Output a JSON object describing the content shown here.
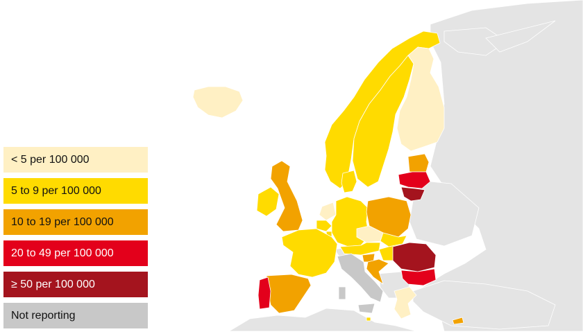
{
  "colors": {
    "sea": "#ffffff",
    "non_eu_land": "#e4e4e4",
    "border": "#ffffff"
  },
  "legend": [
    {
      "label": "< 5 per 100 000",
      "color": "#fff0c4",
      "text_color": "#111111"
    },
    {
      "label": "5 to 9 per 100 000",
      "color": "#ffdb00",
      "text_color": "#111111"
    },
    {
      "label": "10 to 19 per 100 000",
      "color": "#f2a200",
      "text_color": "#111111"
    },
    {
      "label": "20 to 49 per 100 000",
      "color": "#e3001b",
      "text_color": "#ffffff"
    },
    {
      "label": "≥ 50 per 100 000",
      "color": "#a4141e",
      "text_color": "#ffffff"
    },
    {
      "label": "Not reporting",
      "color": "#c8c8c8",
      "text_color": "#111111"
    }
  ],
  "countries": [
    {
      "name": "Iceland",
      "class": 0
    },
    {
      "name": "Norway",
      "class": 1
    },
    {
      "name": "Sweden",
      "class": 1
    },
    {
      "name": "Finland",
      "class": 0
    },
    {
      "name": "Estonia",
      "class": 2
    },
    {
      "name": "Latvia",
      "class": 3
    },
    {
      "name": "Lithuania",
      "class": 4
    },
    {
      "name": "Ireland",
      "class": 1
    },
    {
      "name": "United Kingdom",
      "class": 2
    },
    {
      "name": "Denmark",
      "class": 1
    },
    {
      "name": "Netherlands",
      "class": 0
    },
    {
      "name": "Belgium",
      "class": 1
    },
    {
      "name": "Luxembourg",
      "class": 1
    },
    {
      "name": "Germany",
      "class": 1
    },
    {
      "name": "Poland",
      "class": 2
    },
    {
      "name": "Czechia",
      "class": 0
    },
    {
      "name": "Slovakia",
      "class": 1
    },
    {
      "name": "Austria",
      "class": 1
    },
    {
      "name": "Hungary",
      "class": 1
    },
    {
      "name": "Slovenia",
      "class": 2
    },
    {
      "name": "Croatia",
      "class": 2
    },
    {
      "name": "Romania",
      "class": 4
    },
    {
      "name": "Bulgaria",
      "class": 3
    },
    {
      "name": "Greece",
      "class": 0
    },
    {
      "name": "France",
      "class": 1
    },
    {
      "name": "Spain",
      "class": 2
    },
    {
      "name": "Portugal",
      "class": 3
    },
    {
      "name": "Italy",
      "class": 5
    },
    {
      "name": "Malta",
      "class": 1
    },
    {
      "name": "Cyprus",
      "class": 2
    }
  ]
}
